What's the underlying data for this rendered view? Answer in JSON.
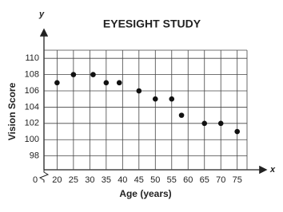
{
  "chart_data": {
    "type": "scatter",
    "title": "EYESIGHT STUDY",
    "x_label": "Age (years)",
    "y_label": "Vision Score",
    "x_axis_letter": "x",
    "y_axis_letter": "y",
    "origin_label": "0",
    "x": [
      20,
      25,
      31,
      35,
      39,
      45,
      50,
      55,
      58,
      65,
      70,
      75
    ],
    "values": [
      107,
      108,
      108,
      107,
      107,
      106,
      105,
      105,
      103,
      102,
      102,
      101
    ],
    "color": "#111111",
    "xlim": [
      16,
      78
    ],
    "xticks": [
      20,
      25,
      30,
      35,
      40,
      45,
      50,
      55,
      60,
      65,
      70,
      75
    ],
    "ylim": [
      96.3,
      111
    ],
    "yticks": [
      98,
      100,
      102,
      104,
      106,
      108,
      110
    ],
    "grid": true
  }
}
